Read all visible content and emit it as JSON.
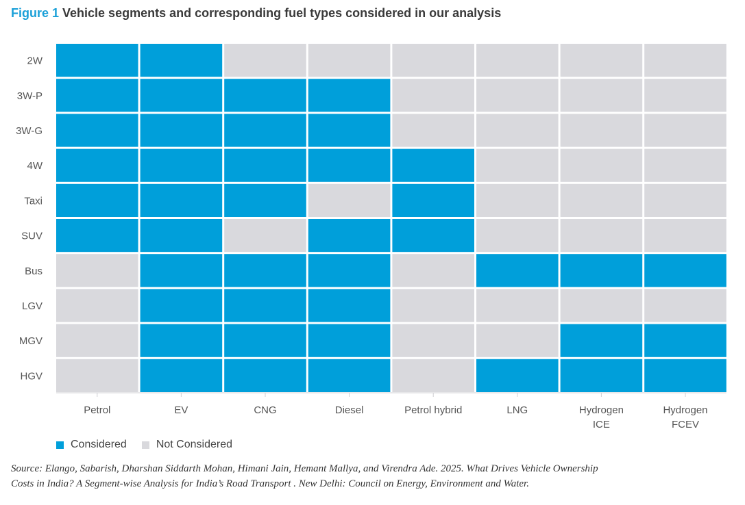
{
  "figure": {
    "number": "Figure 1",
    "title": "Vehicle segments and corresponding fuel types considered in our analysis"
  },
  "legend": {
    "considered_label": "Considered",
    "not_considered_label": "Not Considered"
  },
  "source": "Source: Elango, Sabarish, Dharshan Siddarth Mohan, Himani Jain, Hemant Mallya, and Virendra Ade. 2025. What Drives Vehicle Ownership Costs in India? A Segment-wise Analysis for India’s Road Transport . New Delhi: Council on Energy, Environment and Water.",
  "colors": {
    "considered": "#009fda",
    "not_considered": "#d9d9dd",
    "axis_text": "#555555",
    "title_accent": "#1aa0d8"
  },
  "chart_data": {
    "type": "heatmap",
    "rows": [
      "2W",
      "3W-P",
      "3W-G",
      "4W",
      "Taxi",
      "SUV",
      "Bus",
      "LGV",
      "MGV",
      "HGV"
    ],
    "columns": [
      [
        "Petrol"
      ],
      [
        "EV"
      ],
      [
        "CNG"
      ],
      [
        "Diesel"
      ],
      [
        "Petrol hybrid"
      ],
      [
        "LNG"
      ],
      [
        "Hydrogen",
        "ICE"
      ],
      [
        "Hydrogen",
        "FCEV"
      ]
    ],
    "values": [
      [
        1,
        1,
        0,
        0,
        0,
        0,
        0,
        0
      ],
      [
        1,
        1,
        1,
        1,
        0,
        0,
        0,
        0
      ],
      [
        1,
        1,
        1,
        1,
        0,
        0,
        0,
        0
      ],
      [
        1,
        1,
        1,
        1,
        1,
        0,
        0,
        0
      ],
      [
        1,
        1,
        1,
        0,
        1,
        0,
        0,
        0
      ],
      [
        1,
        1,
        0,
        1,
        1,
        0,
        0,
        0
      ],
      [
        0,
        1,
        1,
        1,
        0,
        1,
        1,
        1
      ],
      [
        0,
        1,
        1,
        1,
        0,
        0,
        0,
        0
      ],
      [
        0,
        1,
        1,
        1,
        0,
        0,
        1,
        1
      ],
      [
        0,
        1,
        1,
        1,
        0,
        1,
        1,
        1
      ]
    ],
    "value_meaning": {
      "1": "Considered",
      "0": "Not Considered"
    },
    "legend_position": "bottom-left"
  }
}
